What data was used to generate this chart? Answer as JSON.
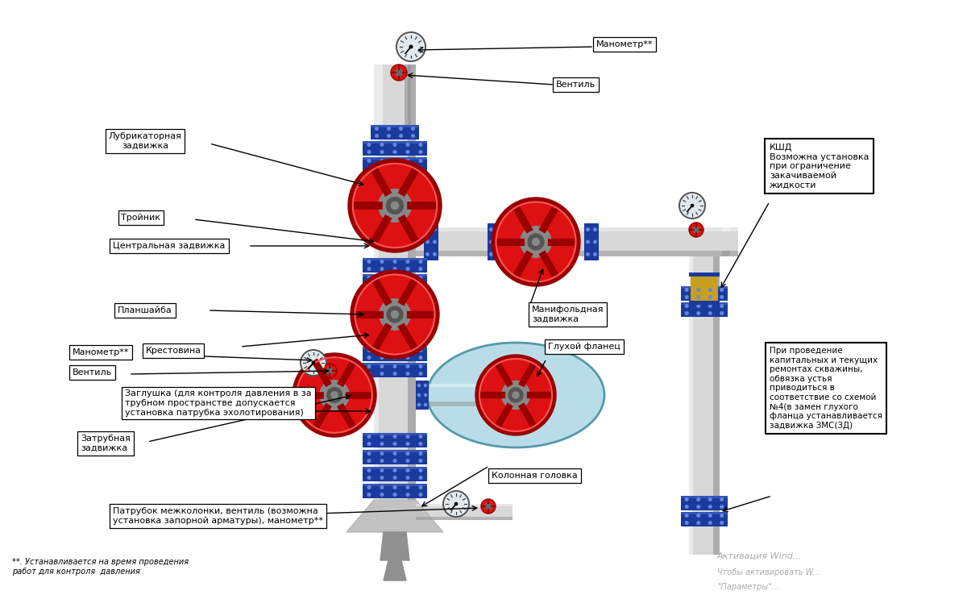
{
  "background_color": "#ffffff",
  "fig_width": 12.0,
  "fig_height": 7.38,
  "labels": {
    "lubricator": "Лубрикаторная\nзадвижка",
    "tee": "Тройник",
    "central_gate": "Центральная задвижка",
    "planshayba": "Планшайба",
    "krestovina": "Крестовина",
    "manometer_left": "Манометр**",
    "ventil_left": "Вентиль",
    "zaglushka": "Заглушка (для контроля давления в за\nтрубном пространстве допускается\nустановка патрубка эхолотирования)",
    "zatrubnaya": "Затрубная\nзадвижка",
    "patrubок": "Патрубок межколонки, вентиль (возможна\nустановка запорной арматуры), манометр**",
    "footnote": "**. Устанавливается на время проведения\nработ для контроля  давления",
    "manometer_top": "Манометр**",
    "ventil_top": "Вентиль",
    "manifold_gate": "Манифольдная\nзадвижка",
    "blind_flange": "Глухой фланец",
    "kolonnaya": "Колонная головка",
    "kshd": "КШД\nВозможна установка\nпри ограничение\nзакачиваемой\nжидкости",
    "repair_note": "При проведение\nкапитальных и текущих\nремонтах скважины,\nобвязка устья\nприводиться в\nсоответствие со схемой\n№4(в замен глухого\nфланца устанавливается\nзадвижка ЗМС(ЗД)",
    "activation1": "Активация Wind...",
    "activation2": "Чтобы активировать W...",
    "activation3": "\"Параметры\"..."
  },
  "colors": {
    "pipe_gray": "#c0c0c0",
    "pipe_light": "#d8d8d8",
    "pipe_dark": "#909090",
    "flange_blue": "#1a3a9e",
    "flange_light": "#4466cc",
    "valve_red": "#dd1111",
    "valve_dark_red": "#990000",
    "valve_center": "#888888",
    "background": "#ffffff",
    "ellipse_fill": "#b8dde8",
    "ellipse_edge": "#5599aa"
  }
}
